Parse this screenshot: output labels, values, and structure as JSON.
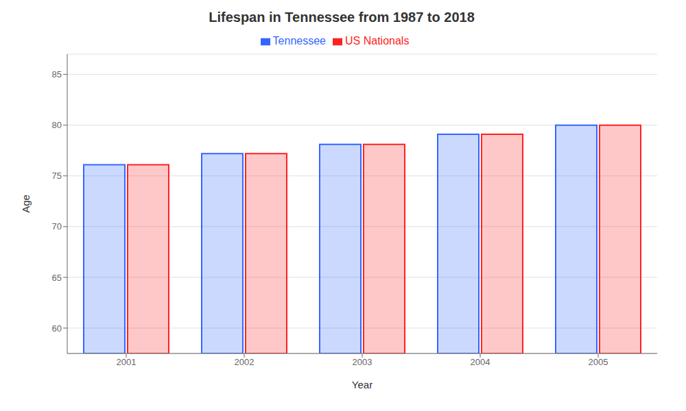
{
  "chart_data": {
    "type": "bar",
    "title": "Lifespan in Tennessee from 1987 to 2018",
    "xlabel": "Year",
    "ylabel": "Age",
    "categories": [
      "2001",
      "2002",
      "2003",
      "2004",
      "2005"
    ],
    "series": [
      {
        "name": "Tennessee",
        "color": "#3366ff",
        "values": [
          76.1,
          77.2,
          78.1,
          79.1,
          80.0
        ]
      },
      {
        "name": "US Nationals",
        "color": "#ff2222",
        "values": [
          76.1,
          77.2,
          78.1,
          79.1,
          80.0
        ]
      }
    ],
    "ylim": [
      57.5,
      87
    ],
    "yticks": [
      60,
      65,
      70,
      75,
      80,
      85
    ],
    "grid": true,
    "legend": "top"
  }
}
